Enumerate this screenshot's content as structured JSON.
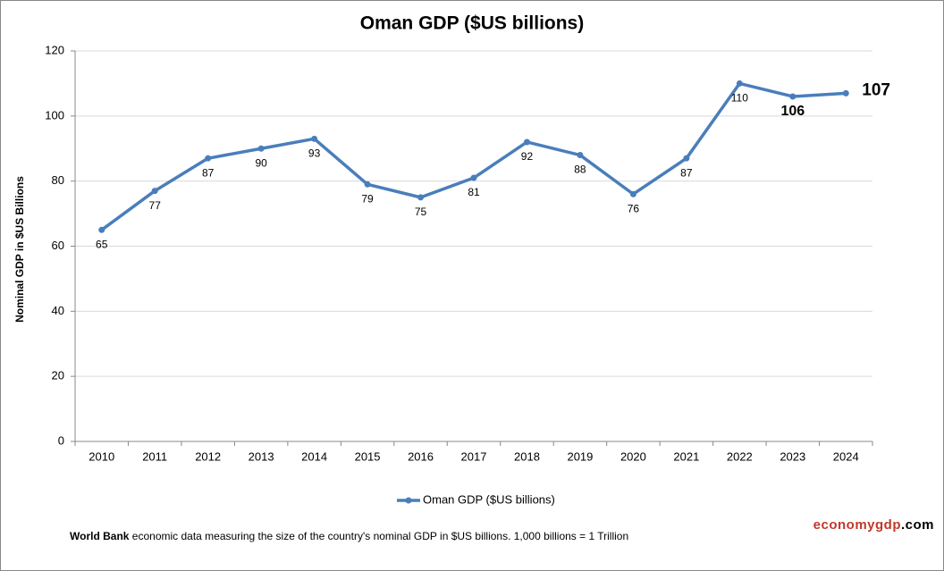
{
  "chart_data": {
    "type": "line",
    "title": "Oman GDP ($US billions)",
    "y_label": "Nominal GDP in $US Billions",
    "categories": [
      "2010",
      "2011",
      "2012",
      "2013",
      "2014",
      "2015",
      "2016",
      "2017",
      "2018",
      "2019",
      "2020",
      "2021",
      "2022",
      "2023",
      "2024"
    ],
    "series": [
      {
        "name": "Oman GDP ($US billions)",
        "color": "#4a7ebb",
        "values": [
          65,
          77,
          87,
          90,
          93,
          79,
          75,
          81,
          92,
          88,
          76,
          87,
          110,
          106,
          107
        ]
      }
    ],
    "ylim": [
      0,
      120
    ],
    "yticks": [
      0,
      20,
      40,
      60,
      80,
      100,
      120
    ],
    "grid": true,
    "legend": "bottom"
  },
  "footer": {
    "source": "World Bank",
    "text": "economic data  measuring the size of the country's nominal GDP in $US billions. 1,000 billions = 1 Trillion"
  },
  "brand": {
    "name": "economygdp",
    "suffix": ".com"
  }
}
